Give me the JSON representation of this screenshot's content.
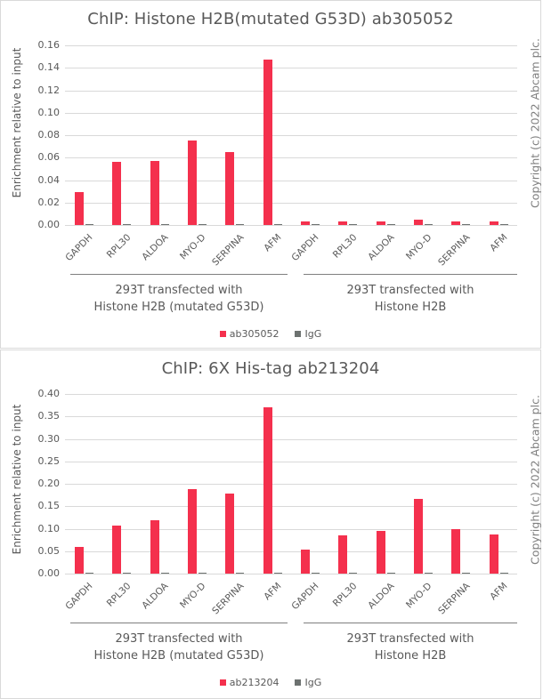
{
  "colors": {
    "primary": "#f4304d",
    "igg": "#6d7270",
    "grid": "#d9d9d9",
    "text": "#595959"
  },
  "charts": [
    {
      "title": "ChIP: Histone H2B(mutated G53D) ab305052",
      "ylabel": "Enrichment relative to input",
      "copyright": "Copyright (c) 2022 Abcam plc.",
      "yticks": [
        "0.00",
        "0.02",
        "0.04",
        "0.06",
        "0.08",
        "0.10",
        "0.12",
        "0.14",
        "0.16"
      ],
      "groups": [
        {
          "line1": "293T transfected with",
          "line2": "Histone H2B (mutated G53D)"
        },
        {
          "line1": "293T transfected with",
          "line2": "Histone H2B"
        }
      ],
      "categories": [
        "GAPDH",
        "RPL30",
        "ALDOA",
        "MYO-D",
        "SERPINA",
        "AFM",
        "GAPDH",
        "RPL30",
        "ALDOA",
        "MYO-D",
        "SERPINA",
        "AFM"
      ],
      "legend": [
        {
          "label": "ab305052"
        },
        {
          "label": "IgG"
        }
      ]
    },
    {
      "title": "ChIP: 6X His-tag ab213204",
      "ylabel": "Enrichment relative to input",
      "copyright": "Copyright (c) 2022 Abcam plc.",
      "yticks": [
        "0.00",
        "0.05",
        "0.10",
        "0.15",
        "0.20",
        "0.25",
        "0.30",
        "0.35",
        "0.40"
      ],
      "groups": [
        {
          "line1": "293T transfected with",
          "line2": "Histone H2B (mutated G53D)"
        },
        {
          "line1": "293T transfected with",
          "line2": "Histone H2B"
        }
      ],
      "categories": [
        "GAPDH",
        "RPL30",
        "ALDOA",
        "MYO-D",
        "SERPINA",
        "AFM",
        "GAPDH",
        "RPL30",
        "ALDOA",
        "MYO-D",
        "SERPINA",
        "AFM"
      ],
      "legend": [
        {
          "label": "ab213204"
        },
        {
          "label": "IgG"
        }
      ]
    }
  ],
  "chart_data": [
    {
      "type": "bar",
      "title": "ChIP: Histone H2B(mutated G53D) ab305052",
      "xlabel": "",
      "ylabel": "Enrichment relative to input",
      "ylim": [
        0,
        0.16
      ],
      "yticks": [
        0,
        0.02,
        0.04,
        0.06,
        0.08,
        0.1,
        0.12,
        0.14,
        0.16
      ],
      "grid": true,
      "legend_position": "bottom",
      "x_groups": [
        "293T transfected with Histone H2B (mutated G53D)",
        "293T transfected with Histone H2B"
      ],
      "categories": [
        "GAPDH",
        "RPL30",
        "ALDOA",
        "MYO-D",
        "SERPINA",
        "AFM",
        "GAPDH",
        "RPL30",
        "ALDOA",
        "MYO-D",
        "SERPINA",
        "AFM"
      ],
      "series": [
        {
          "name": "ab305052",
          "color": "#f4304d",
          "values": [
            0.029,
            0.056,
            0.057,
            0.075,
            0.065,
            0.147,
            0.003,
            0.003,
            0.003,
            0.005,
            0.003,
            0.003
          ]
        },
        {
          "name": "IgG",
          "color": "#6d7270",
          "values": [
            0.001,
            0.001,
            0.001,
            0.001,
            0.001,
            0.001,
            0.001,
            0.001,
            0.001,
            0.001,
            0.001,
            0.001
          ]
        }
      ],
      "annotations": [
        "Copyright (c) 2022 Abcam plc."
      ]
    },
    {
      "type": "bar",
      "title": "ChIP: 6X His-tag ab213204",
      "xlabel": "",
      "ylabel": "Enrichment relative to input",
      "ylim": [
        0,
        0.4
      ],
      "yticks": [
        0,
        0.05,
        0.1,
        0.15,
        0.2,
        0.25,
        0.3,
        0.35,
        0.4
      ],
      "grid": true,
      "legend_position": "bottom",
      "x_groups": [
        "293T transfected with Histone H2B (mutated G53D)",
        "293T transfected with Histone H2B"
      ],
      "categories": [
        "GAPDH",
        "RPL30",
        "ALDOA",
        "MYO-D",
        "SERPINA",
        "AFM",
        "GAPDH",
        "RPL30",
        "ALDOA",
        "MYO-D",
        "SERPINA",
        "AFM"
      ],
      "series": [
        {
          "name": "ab213204",
          "color": "#f4304d",
          "values": [
            0.06,
            0.107,
            0.119,
            0.189,
            0.179,
            0.371,
            0.054,
            0.085,
            0.095,
            0.167,
            0.099,
            0.087
          ]
        },
        {
          "name": "IgG",
          "color": "#6d7270",
          "values": [
            0.002,
            0.002,
            0.002,
            0.002,
            0.002,
            0.002,
            0.002,
            0.002,
            0.002,
            0.002,
            0.002,
            0.002
          ]
        }
      ],
      "annotations": [
        "Copyright (c) 2022 Abcam plc."
      ]
    }
  ]
}
